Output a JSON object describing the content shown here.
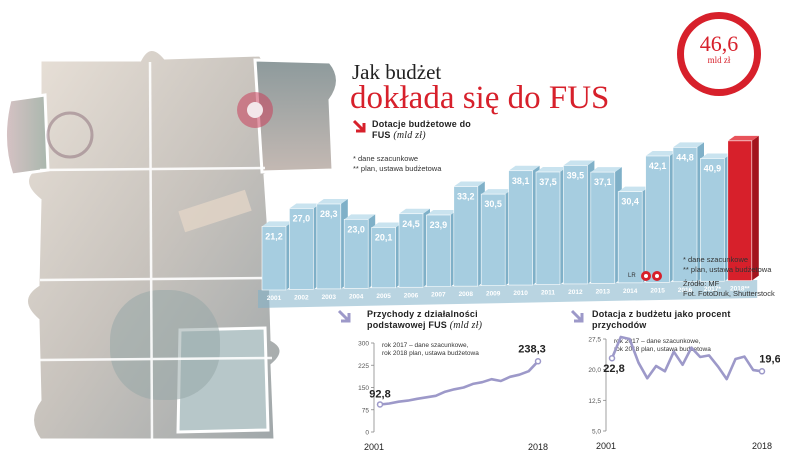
{
  "title_line1": "Jak budżet",
  "title_line2": "dokłada się do FUS",
  "badge": {
    "value": "46,6",
    "unit": "mld zł"
  },
  "colors": {
    "bar": "#a6cde0",
    "bar_top": "#c9e3ef",
    "bar_side": "#7fb0c8",
    "highlight": "#d7202b",
    "line": "#9d99c9",
    "axis": "#888888"
  },
  "main_chart": {
    "header_bold": "Dotacje budżetowe do FUS",
    "header_unit": "(mld zł)",
    "note1": "* dane szacunkowe",
    "note2": "** plan, ustawa budżetowa"
  },
  "side_notes": {
    "note1": "* dane szacunkowe",
    "note2": "** plan, ustawa budżetowa",
    "source1": "Źródło: MF",
    "source2": "Fot. FotoDruk, Shutterstock",
    "credit": "LR"
  },
  "chart_data": [
    {
      "type": "bar",
      "categories": [
        "2001",
        "2002",
        "2003",
        "2004",
        "2005",
        "2006",
        "2007",
        "2008",
        "2009",
        "2010",
        "2011",
        "2012",
        "2013",
        "2014",
        "2015",
        "2016",
        "2017*",
        "2018**"
      ],
      "labels": [
        "21,2",
        "27,0",
        "28,3",
        "23,0",
        "20,1",
        "24,5",
        "23,9",
        "33,2",
        "30,5",
        "38,1",
        "37,5",
        "39,5",
        "37,1",
        "30,4",
        "42,1",
        "44,8",
        "40,9",
        ""
      ],
      "values": [
        21.2,
        27.0,
        28.3,
        23.0,
        20.1,
        24.5,
        23.9,
        33.2,
        30.5,
        38.1,
        37.5,
        39.5,
        37.1,
        30.4,
        42.1,
        44.8,
        40.9,
        46.6
      ],
      "ylim": [
        0,
        50
      ]
    },
    {
      "type": "line",
      "title_bold": "Przychody z działalności podstawowej FUS",
      "title_unit": "(mld zł)",
      "note1": "rok 2017 – dane szacunkowe,",
      "note2": "rok 2018 plan, ustawa budżetowa",
      "x": [
        2001,
        2002,
        2003,
        2004,
        2005,
        2006,
        2007,
        2008,
        2009,
        2010,
        2011,
        2012,
        2013,
        2014,
        2015,
        2016,
        2017,
        2018
      ],
      "values": [
        92.8,
        96,
        102,
        106,
        112,
        117,
        122,
        136,
        144,
        150,
        162,
        168,
        178,
        172,
        186,
        193,
        205,
        238.3
      ],
      "ylim": [
        0,
        300
      ],
      "yticks": [
        "0",
        "75",
        "150",
        "225",
        "300"
      ],
      "ytick_values": [
        0,
        75,
        150,
        225,
        300
      ],
      "xticks": [
        "2001",
        "2018"
      ],
      "start_label": "92,8",
      "end_label": "238,3"
    },
    {
      "type": "line",
      "title_bold": "Dotacja z budżetu jako procent przychodów",
      "note1": "rok 2017 – dane szacunkowe,",
      "note2": "rok 2018 plan, ustawa budżetowa",
      "x": [
        2001,
        2002,
        2003,
        2004,
        2005,
        2006,
        2007,
        2008,
        2009,
        2010,
        2011,
        2012,
        2013,
        2014,
        2015,
        2016,
        2017,
        2018
      ],
      "values": [
        22.8,
        28.0,
        27.5,
        21.7,
        17.9,
        20.9,
        19.6,
        24.4,
        21.2,
        25.4,
        23.1,
        23.5,
        20.8,
        17.7,
        22.6,
        23.2,
        19.9,
        19.6
      ],
      "ylim": [
        5.0,
        27.5
      ],
      "yticks": [
        "5,0",
        "12,5",
        "20,0",
        "27,5"
      ],
      "ytick_values": [
        5.0,
        12.5,
        20.0,
        27.5
      ],
      "xticks": [
        "2001",
        "2018"
      ],
      "start_label": "22,8",
      "end_label": "19,6"
    }
  ]
}
